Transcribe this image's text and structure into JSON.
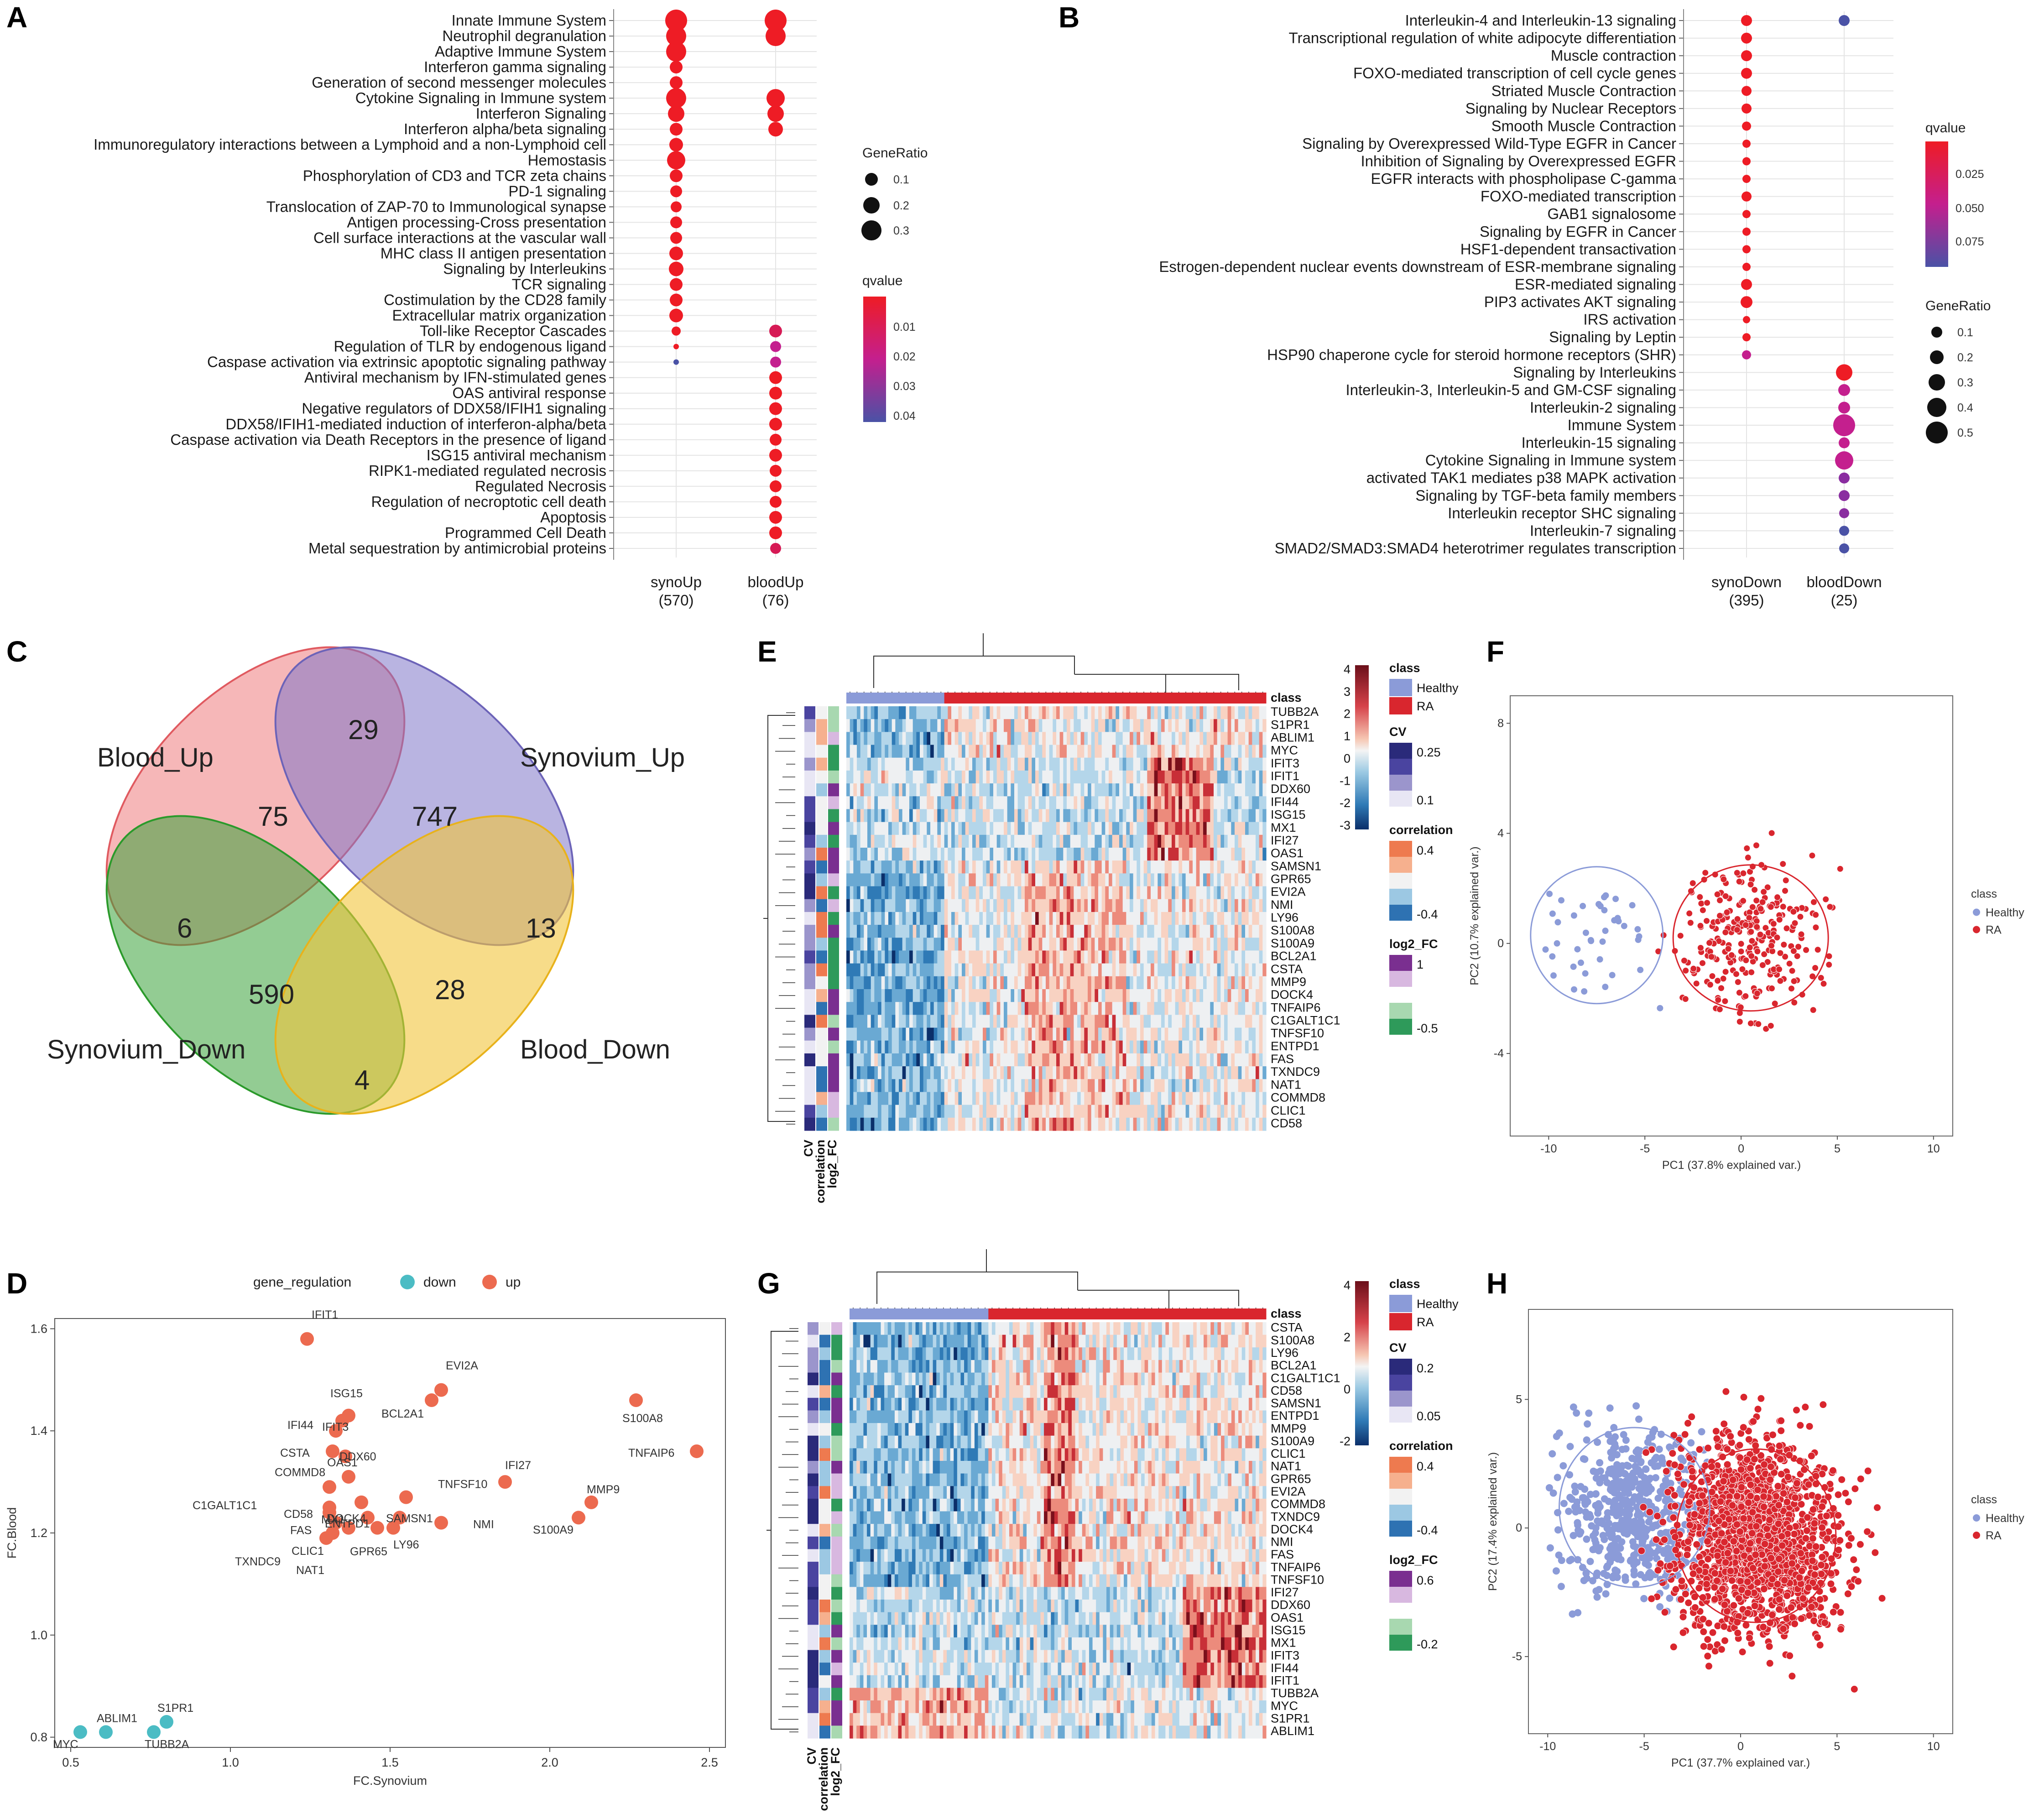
{
  "panels": {
    "A": "A",
    "B": "B",
    "C": "C",
    "D": "D",
    "E": "E",
    "F": "F",
    "G": "G",
    "H": "H"
  },
  "colors": {
    "up": "#ee1c25",
    "mid": "#c41f8e",
    "low": "#4a52a6",
    "healthy": "#8b9bd8",
    "ra": "#d9262e",
    "down_reg": "#4bbcc4",
    "up_reg": "#ec6a4f"
  },
  "panelA": {
    "terms": [
      "Innate Immune System",
      "Neutrophil degranulation",
      "Adaptive Immune System",
      "Interferon gamma signaling",
      "Generation of second messenger molecules",
      "Cytokine Signaling in Immune system",
      "Interferon Signaling",
      "Interferon alpha/beta signaling",
      "Immunoregulatory interactions between a Lymphoid and a non-Lymphoid cell",
      "Hemostasis",
      "Phosphorylation of CD3 and TCR zeta chains",
      "PD-1 signaling",
      "Translocation of ZAP-70 to Immunological synapse",
      "Antigen processing-Cross presentation",
      "Cell surface interactions at the vascular wall",
      "MHC class II antigen presentation",
      "Signaling by Interleukins",
      "TCR signaling",
      "Costimulation by the CD28 family",
      "Extracellular matrix organization",
      "Toll-like Receptor Cascades",
      "Regulation of TLR by endogenous ligand",
      "Caspase activation via extrinsic apoptotic signaling pathway",
      "Antiviral mechanism by IFN-stimulated genes",
      "OAS antiviral response",
      "Negative regulators of DDX58/IFIH1 signaling",
      "DDX58/IFIH1-mediated induction of interferon-alpha/beta",
      "Caspase activation via Death Receptors in the presence of ligand",
      "ISG15 antiviral mechanism",
      "RIPK1-mediated regulated necrosis",
      "Regulated Necrosis",
      "Regulation of necroptotic cell death",
      "Apoptosis",
      "Programmed Cell Death",
      "Metal sequestration by antimicrobial proteins"
    ],
    "columns": [
      "synoUp",
      "bloodUp"
    ],
    "counts": [
      "(570)",
      "(76)"
    ],
    "legend_size_title": "GeneRatio",
    "legend_size_values": [
      "0.1",
      "0.2",
      "0.3"
    ],
    "legend_color_title": "qvalue",
    "legend_color_values": [
      "0.01",
      "0.02",
      "0.03",
      "0.04"
    ]
  },
  "panelB": {
    "terms": [
      "Interleukin-4 and Interleukin-13 signaling",
      "Transcriptional regulation of white adipocyte differentiation",
      "Muscle contraction",
      "FOXO-mediated transcription of cell cycle genes",
      "Striated Muscle Contraction",
      "Signaling by Nuclear Receptors",
      "Smooth Muscle Contraction",
      "Signaling by Overexpressed Wild-Type EGFR in Cancer",
      "Inhibition of Signaling by Overexpressed EGFR",
      "EGFR interacts with phospholipase C-gamma",
      "FOXO-mediated transcription",
      "GAB1 signalosome",
      "Signaling by EGFR in Cancer",
      "HSF1-dependent transactivation",
      "Estrogen-dependent nuclear events downstream of ESR-membrane signaling",
      "ESR-mediated signaling",
      "PIP3 activates AKT signaling",
      "IRS activation",
      "Signaling by Leptin",
      "HSP90 chaperone cycle for steroid hormone receptors (SHR)",
      "Signaling by Interleukins",
      "Interleukin-3, Interleukin-5 and GM-CSF signaling",
      "Interleukin-2 signaling",
      "Immune System",
      "Interleukin-15 signaling",
      "Cytokine Signaling in Immune system",
      "activated TAK1 mediates p38 MAPK activation",
      "Signaling by TGF-beta family members",
      "Interleukin receptor SHC signaling",
      "Interleukin-7 signaling",
      "SMAD2/SMAD3:SMAD4 heterotrimer regulates transcription"
    ],
    "columns": [
      "synoDown",
      "bloodDown"
    ],
    "counts": [
      "(395)",
      "(25)"
    ],
    "legend_color_title": "qvalue",
    "legend_color_values": [
      "0.025",
      "0.050",
      "0.075"
    ],
    "legend_size_title": "GeneRatio",
    "legend_size_values": [
      "0.1",
      "0.2",
      "0.3",
      "0.4",
      "0.5"
    ]
  },
  "panelC": {
    "sets": [
      "Blood_Up",
      "Synovium_Up",
      "Synovium_Down",
      "Blood_Down"
    ],
    "counts": {
      "blood_up_only": "75",
      "bu_su": "29",
      "su_only": "747",
      "bu_sd": "6",
      "su_bd": "13",
      "sd_only": "590",
      "bd_only": "28",
      "sd_bd": "4"
    }
  },
  "panelE": {
    "genes": [
      "TUBB2A",
      "S1PR1",
      "ABLIM1",
      "MYC",
      "IFIT3",
      "IFIT1",
      "DDX60",
      "IFI44",
      "ISG15",
      "MX1",
      "IFI27",
      "OAS1",
      "SAMSN1",
      "GPR65",
      "EVI2A",
      "NMI",
      "LY96",
      "S100A8",
      "S100A9",
      "BCL2A1",
      "CSTA",
      "MMP9",
      "DOCK4",
      "TNFAIP6",
      "C1GALT1C1",
      "TNFSF10",
      "ENTPD1",
      "FAS",
      "TXNDC9",
      "NAT1",
      "COMMD8",
      "CLIC1",
      "CD58"
    ],
    "class_label": "class",
    "annot_labels": [
      "CV",
      "correlation",
      "log2_FC"
    ],
    "scale_values": [
      "4",
      "3",
      "2",
      "1",
      "0",
      "-1",
      "-2",
      "-3"
    ],
    "legend": {
      "class_title": "class",
      "healthy": "Healthy",
      "ra": "RA",
      "cv_title": "CV",
      "cv_values": [
        "0.25",
        "0.1"
      ],
      "corr_title": "correlation",
      "corr_values": [
        "0.4",
        "-0.4"
      ],
      "fc_title": "log2_FC",
      "fc_values": [
        "1",
        "-0.5"
      ]
    }
  },
  "panelG": {
    "genes": [
      "CSTA",
      "S100A8",
      "LY96",
      "BCL2A1",
      "C1GALT1C1",
      "CD58",
      "SAMSN1",
      "ENTPD1",
      "MMP9",
      "S100A9",
      "CLIC1",
      "NAT1",
      "GPR65",
      "EVI2A",
      "COMMD8",
      "TXNDC9",
      "DOCK4",
      "NMI",
      "FAS",
      "TNFAIP6",
      "TNFSF10",
      "IFI27",
      "DDX60",
      "OAS1",
      "ISG15",
      "MX1",
      "IFIT3",
      "IFI44",
      "IFIT1",
      "TUBB2A",
      "MYC",
      "S1PR1",
      "ABLIM1"
    ],
    "class_label": "class",
    "annot_labels": [
      "CV",
      "correlation",
      "log2_FC"
    ],
    "scale_values": [
      "4",
      "2",
      "0",
      "-2"
    ],
    "legend": {
      "class_title": "class",
      "healthy": "Healthy",
      "ra": "RA",
      "cv_title": "CV",
      "cv_values": [
        "0.2",
        "0.05"
      ],
      "corr_title": "correlation",
      "corr_values": [
        "0.4",
        "-0.4"
      ],
      "fc_title": "log2_FC",
      "fc_values": [
        "0.6",
        "-0.2"
      ]
    }
  },
  "chart_data": [
    {
      "type": "scatter",
      "title": "",
      "legend_title": "gene_regulation",
      "legend_entries": [
        "down",
        "up"
      ],
      "xlabel": "FC.Synovium",
      "ylabel": "FC.Blood",
      "xlim": [
        0.45,
        2.55
      ],
      "ylim": [
        0.78,
        1.62
      ],
      "xticks": [
        "0.5",
        "1.0",
        "1.5",
        "2.0",
        "2.5"
      ],
      "yticks": [
        "0.8",
        "1.0",
        "1.2",
        "1.4",
        "1.6"
      ],
      "points": [
        {
          "label": "IFIT1",
          "x": 1.24,
          "y": 1.58,
          "reg": "up"
        },
        {
          "label": "EVI2A",
          "x": 1.66,
          "y": 1.48,
          "reg": "up"
        },
        {
          "label": "S100A8",
          "x": 2.27,
          "y": 1.46,
          "reg": "up"
        },
        {
          "label": "BCL2A1",
          "x": 1.63,
          "y": 1.46,
          "reg": "up"
        },
        {
          "label": "ISG15",
          "x": 1.37,
          "y": 1.43,
          "reg": "up"
        },
        {
          "label": "IFI44",
          "x": 1.35,
          "y": 1.42,
          "reg": "up"
        },
        {
          "label": "IFIT3",
          "x": 1.33,
          "y": 1.4,
          "reg": "up"
        },
        {
          "label": "TNFAIP6",
          "x": 2.46,
          "y": 1.36,
          "reg": "up"
        },
        {
          "label": "CSTA",
          "x": 1.32,
          "y": 1.36,
          "reg": "up"
        },
        {
          "label": "OAS1",
          "x": 1.36,
          "y": 1.35,
          "reg": "up"
        },
        {
          "label": "DDX60",
          "x": 1.37,
          "y": 1.31,
          "reg": "up"
        },
        {
          "label": "IFI27",
          "x": 1.86,
          "y": 1.3,
          "reg": "up"
        },
        {
          "label": "COMMD8",
          "x": 1.31,
          "y": 1.29,
          "reg": "up"
        },
        {
          "label": "C1GALT1C1",
          "x": 1.31,
          "y": 1.25,
          "reg": "up"
        },
        {
          "label": "ENTPD1",
          "x": 1.41,
          "y": 1.26,
          "reg": "up"
        },
        {
          "label": "TNFSF10",
          "x": 1.55,
          "y": 1.27,
          "reg": "up"
        },
        {
          "label": "MMP9",
          "x": 2.13,
          "y": 1.26,
          "reg": "up"
        },
        {
          "label": "S100A9",
          "x": 2.09,
          "y": 1.23,
          "reg": "up"
        },
        {
          "label": "CD58",
          "x": 1.31,
          "y": 1.24,
          "reg": "up"
        },
        {
          "label": "DOCK4",
          "x": 1.43,
          "y": 1.23,
          "reg": "up"
        },
        {
          "label": "SAMSN1",
          "x": 1.53,
          "y": 1.23,
          "reg": "up"
        },
        {
          "label": "FAS",
          "x": 1.33,
          "y": 1.22,
          "reg": "up"
        },
        {
          "label": "NMI",
          "x": 1.66,
          "y": 1.22,
          "reg": "up"
        },
        {
          "label": "MX1",
          "x": 1.37,
          "y": 1.21,
          "reg": "up"
        },
        {
          "label": "LY96",
          "x": 1.51,
          "y": 1.21,
          "reg": "up"
        },
        {
          "label": "GPR65",
          "x": 1.46,
          "y": 1.21,
          "reg": "up"
        },
        {
          "label": "CLIC1",
          "x": 1.32,
          "y": 1.2,
          "reg": "up"
        },
        {
          "label": "TXNDC9",
          "x": 1.3,
          "y": 1.19,
          "reg": "up"
        },
        {
          "label": "NAT1",
          "x": 1.32,
          "y": 1.2,
          "reg": "up"
        },
        {
          "label": "S1PR1",
          "x": 0.8,
          "y": 0.83,
          "reg": "down"
        },
        {
          "label": "ABLIM1",
          "x": 0.61,
          "y": 0.81,
          "reg": "down"
        },
        {
          "label": "TUBB2A",
          "x": 0.76,
          "y": 0.81,
          "reg": "down"
        },
        {
          "label": "MYC",
          "x": 0.53,
          "y": 0.81,
          "reg": "down"
        }
      ]
    },
    {
      "type": "scatter",
      "title": "",
      "xlabel": "PC1 (37.8% explained var.)",
      "ylabel": "PC2 (10.7% explained var.)",
      "xlim": [
        -12,
        11
      ],
      "ylim": [
        -7,
        9
      ],
      "xticks": [
        "-10",
        "-5",
        "0",
        "5",
        "10"
      ],
      "yticks": [
        "-4",
        "0",
        "4",
        "8"
      ],
      "legend_title": "class",
      "legend_entries": [
        "Healthy",
        "RA"
      ]
    },
    {
      "type": "scatter",
      "title": "",
      "xlabel": "PC1 (37.7% explained var.)",
      "ylabel": "PC2 (17.4% explained var.)",
      "xlim": [
        -11,
        11
      ],
      "ylim": [
        -8,
        8.5
      ],
      "xticks": [
        "-10",
        "-5",
        "0",
        "5",
        "10"
      ],
      "yticks": [
        "-5",
        "0",
        "5"
      ],
      "legend_title": "class",
      "legend_entries": [
        "Healthy",
        "RA"
      ]
    }
  ]
}
